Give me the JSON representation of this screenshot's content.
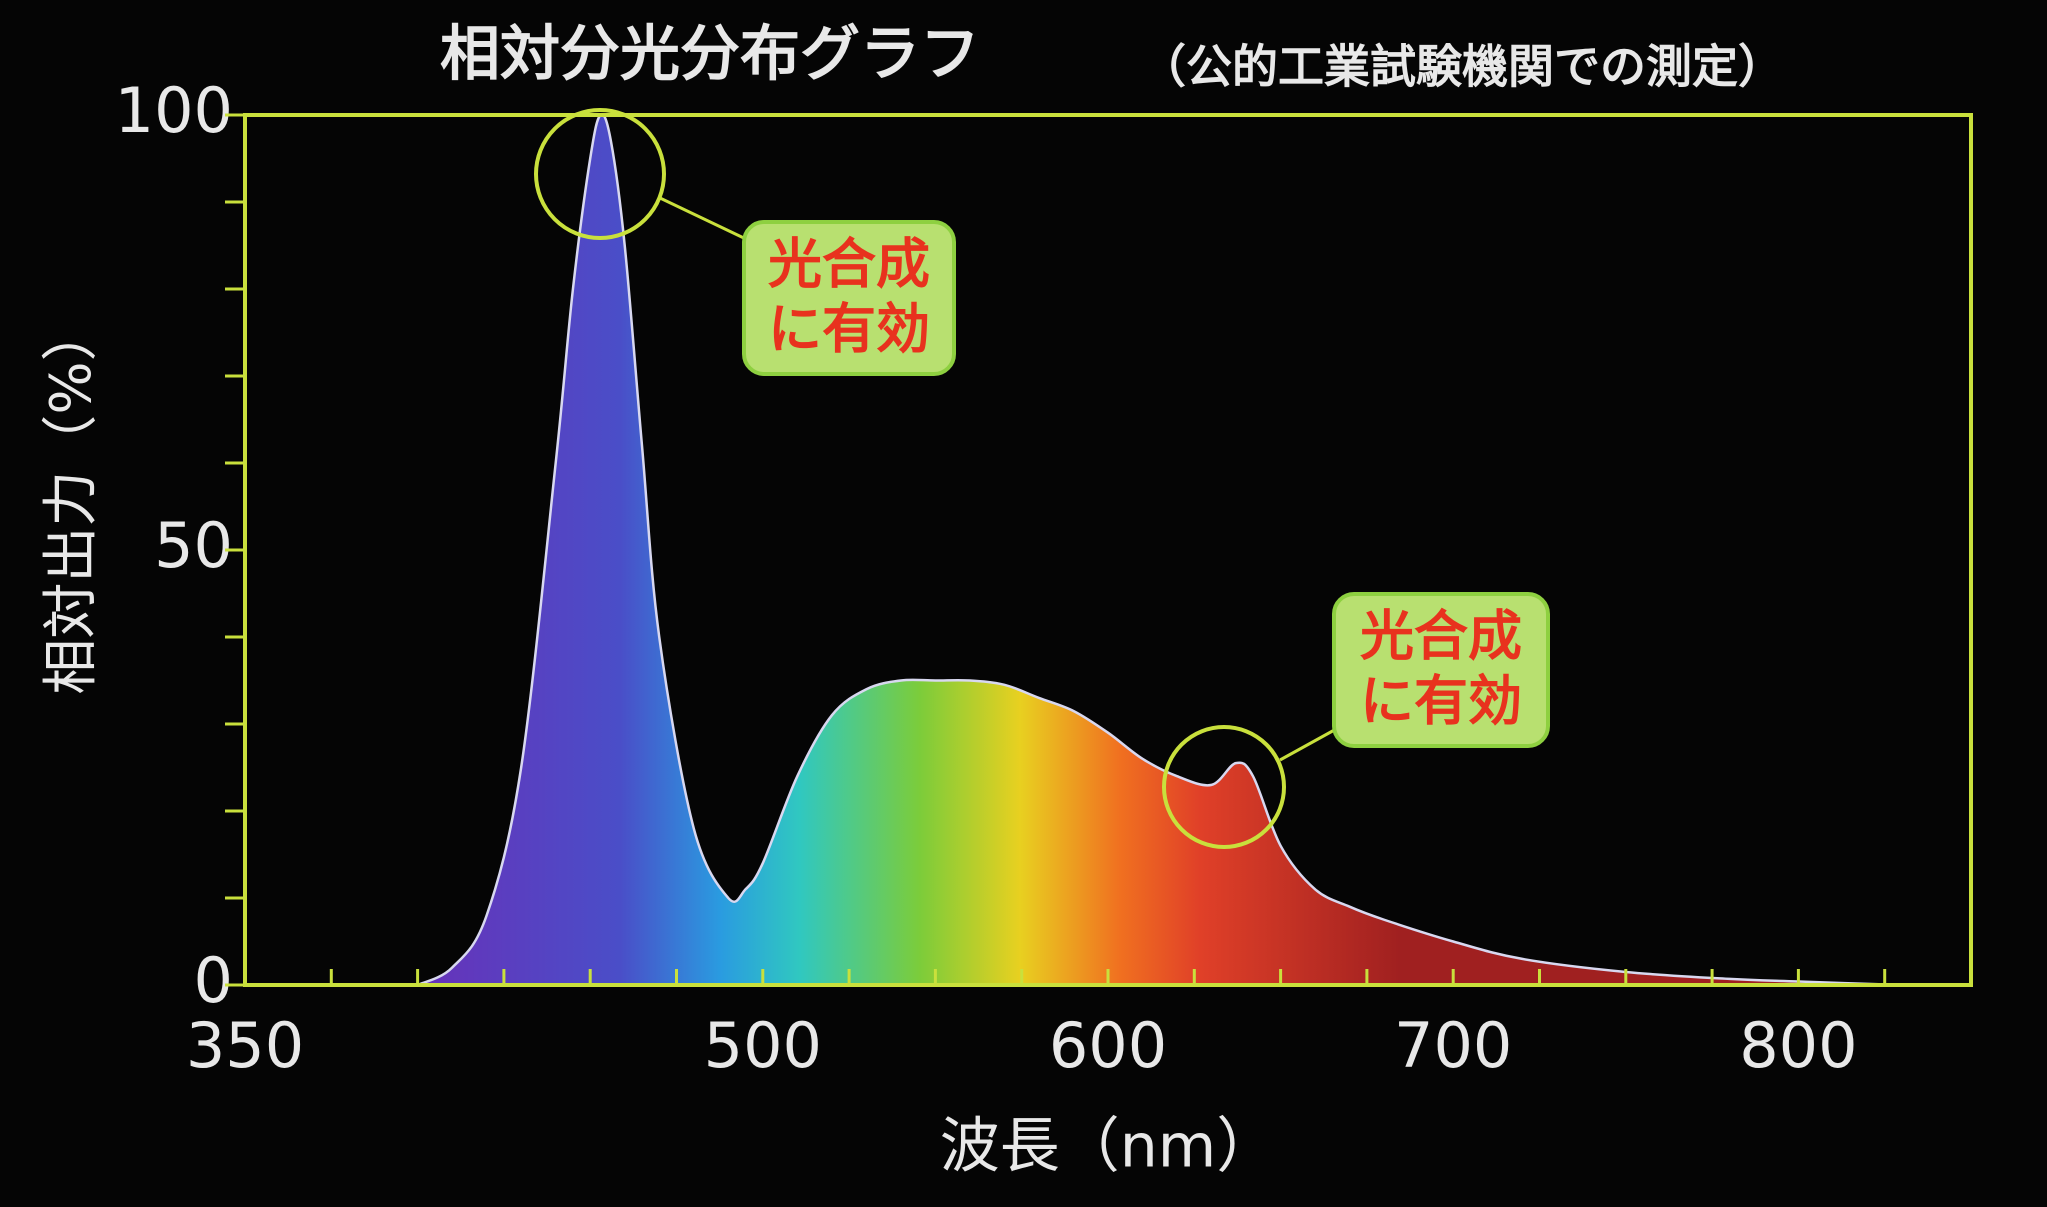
{
  "chart_data": {
    "type": "area",
    "title": "相対分光分布グラフ",
    "subtitle": "（公的工業試験機関での測定）",
    "x_label": "波長（nm）",
    "y_label": "相対出力（%）",
    "x": [
      400,
      410,
      420,
      430,
      440,
      445,
      450,
      453,
      456,
      460,
      465,
      470,
      480,
      490,
      495,
      500,
      510,
      520,
      530,
      540,
      550,
      560,
      570,
      580,
      590,
      600,
      610,
      620,
      630,
      637,
      642,
      650,
      660,
      670,
      680,
      700,
      720,
      750,
      780,
      800,
      830
    ],
    "values": [
      0,
      2,
      8,
      25,
      60,
      80,
      95,
      100,
      97,
      85,
      62,
      40,
      18,
      10,
      11,
      14,
      24,
      31,
      34,
      35,
      35,
      35,
      34.5,
      33,
      31.5,
      29,
      26,
      24,
      23,
      25.5,
      24,
      16,
      11,
      9,
      7.5,
      5,
      3,
      1.5,
      0.7,
      0.4,
      0
    ],
    "xlim": [
      350,
      850
    ],
    "xticks": [
      350,
      500,
      600,
      700,
      800
    ],
    "xminorticks": [
      375,
      400,
      425,
      450,
      475,
      500,
      525,
      550,
      575,
      600,
      625,
      650,
      675,
      700,
      725,
      750,
      775,
      800,
      825
    ],
    "ylim": [
      0,
      100
    ],
    "yticks": [
      0,
      50,
      100
    ],
    "yminorticks": [
      10,
      20,
      30,
      40,
      50,
      60,
      70,
      80,
      90
    ],
    "frame_color": "#c9e03c",
    "annotations": [
      {
        "lines": [
          "光合成",
          "に有効"
        ]
      },
      {
        "lines": [
          "光合成",
          "に有効"
        ]
      }
    ]
  }
}
